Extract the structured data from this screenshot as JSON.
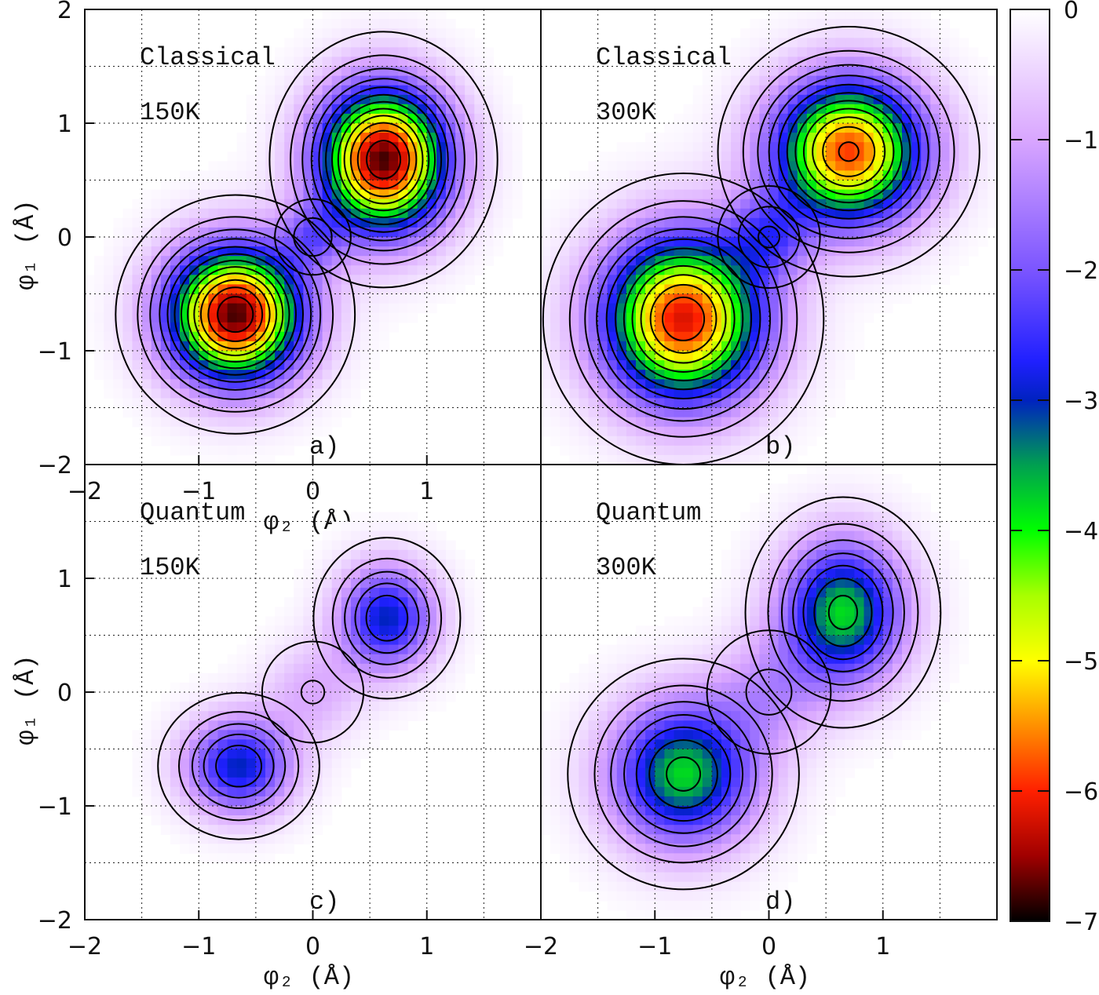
{
  "chart_data": [
    {
      "type": "heatmap",
      "panel": "a)",
      "labels": [
        "Classical",
        "150K"
      ],
      "xlabel": "φ₂ (Å)",
      "ylabel": "φ₁ (Å)",
      "xlim": [
        -2,
        2
      ],
      "ylim": [
        -2,
        2
      ],
      "xticks": [
        "-2",
        "-1",
        "0",
        "1"
      ],
      "yticks": [
        "2",
        "1",
        "0",
        "-1",
        "-2"
      ],
      "grid": true,
      "basins": [
        {
          "x": -0.68,
          "y": -0.68,
          "min": -6.8,
          "sx": 0.42,
          "sy": 0.42
        },
        {
          "x": 0.62,
          "y": 0.68,
          "min": -6.8,
          "sx": 0.4,
          "sy": 0.45
        },
        {
          "x": 0.0,
          "y": 0.0,
          "min": -1.2,
          "sx": 0.2,
          "sy": 0.2
        }
      ]
    },
    {
      "type": "heatmap",
      "panel": "b)",
      "labels": [
        "Classical",
        "300K"
      ],
      "xlabel": "",
      "ylabel": "",
      "xlim": [
        -2,
        2
      ],
      "ylim": [
        -2,
        2
      ],
      "grid": true,
      "basins": [
        {
          "x": -0.75,
          "y": -0.72,
          "min": -6.2,
          "sx": 0.5,
          "sy": 0.52
        },
        {
          "x": 0.7,
          "y": 0.75,
          "min": -5.9,
          "sx": 0.47,
          "sy": 0.45
        },
        {
          "x": 0.0,
          "y": 0.0,
          "min": -1.5,
          "sx": 0.25,
          "sy": 0.25
        }
      ]
    },
    {
      "type": "heatmap",
      "panel": "c)",
      "labels": [
        "Quantum",
        "150K"
      ],
      "xlabel": "φ₂ (Å)",
      "ylabel": "φ₁ (Å)",
      "xlim": [
        -2,
        2
      ],
      "ylim": [
        -2,
        2
      ],
      "xticks": [
        "-2",
        "-1",
        "0",
        "1"
      ],
      "yticks": [
        "2",
        "1",
        "0",
        "-1",
        "-2"
      ],
      "grid": true,
      "basins": [
        {
          "x": -0.65,
          "y": -0.65,
          "min": -3.0,
          "sx": 0.33,
          "sy": 0.3
        },
        {
          "x": 0.65,
          "y": 0.65,
          "min": -3.0,
          "sx": 0.3,
          "sy": 0.33
        },
        {
          "x": 0.0,
          "y": 0.0,
          "min": -0.9,
          "sx": 0.3,
          "sy": 0.3
        }
      ]
    },
    {
      "type": "heatmap",
      "panel": "d)",
      "labels": [
        "Quantum",
        "300K"
      ],
      "xlabel": "φ₂ (Å)",
      "ylabel": "",
      "xlim": [
        -2,
        2
      ],
      "ylim": [
        -2,
        2
      ],
      "xticks": [
        "-2",
        "-1",
        "0",
        "1"
      ],
      "grid": true,
      "basins": [
        {
          "x": -0.75,
          "y": -0.72,
          "min": -3.8,
          "sx": 0.45,
          "sy": 0.45
        },
        {
          "x": 0.65,
          "y": 0.7,
          "min": -3.8,
          "sx": 0.38,
          "sy": 0.45
        },
        {
          "x": 0.0,
          "y": 0.0,
          "min": -1.0,
          "sx": 0.35,
          "sy": 0.35
        }
      ]
    }
  ],
  "colorbar": {
    "range": [
      -7,
      0
    ],
    "ticks": [
      "0",
      "-1",
      "-2",
      "-3",
      "-4",
      "-5",
      "-6",
      "-7"
    ],
    "colormap": [
      [
        0,
        "#ffffff"
      ],
      [
        -1,
        "#d9a6ff"
      ],
      [
        -2,
        "#7b55ff"
      ],
      [
        -2.7,
        "#2020ff"
      ],
      [
        -3,
        "#0022c0"
      ],
      [
        -3.5,
        "#00a050"
      ],
      [
        -4,
        "#00ff00"
      ],
      [
        -4.5,
        "#a8ff00"
      ],
      [
        -5,
        "#ffff00"
      ],
      [
        -5.5,
        "#ff9000"
      ],
      [
        -6,
        "#ff2000"
      ],
      [
        -6.5,
        "#a00000"
      ],
      [
        -7,
        "#000000"
      ]
    ]
  }
}
